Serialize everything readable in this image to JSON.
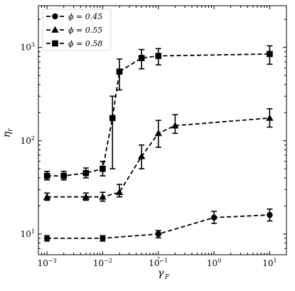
{
  "chart_data": {
    "type": "scatter",
    "title": "",
    "xlabel": "γ̂̇_F",
    "ylabel": "η_r",
    "x_scale": "log",
    "y_scale": "log",
    "xlim": [
      0.0007,
      20
    ],
    "ylim": [
      6,
      2800
    ],
    "x_ticks": [
      {
        "value": 0.001,
        "base": "10",
        "exp": "−3"
      },
      {
        "value": 0.01,
        "base": "10",
        "exp": "−2"
      },
      {
        "value": 0.1,
        "base": "10",
        "exp": "−1"
      },
      {
        "value": 1,
        "base": "10",
        "exp": "0"
      },
      {
        "value": 10,
        "base": "10",
        "exp": "1"
      }
    ],
    "y_ticks": [
      {
        "value": 10,
        "base": "10",
        "exp": "1"
      },
      {
        "value": 100,
        "base": "10",
        "exp": "2"
      },
      {
        "value": 1000,
        "base": "10",
        "exp": "3"
      }
    ],
    "grid": false,
    "legend_position": "top-left",
    "series": [
      {
        "name": "ϕ = 0.45",
        "marker": "circle",
        "x": [
          0.001,
          0.01,
          0.1,
          1,
          10
        ],
        "y": [
          9,
          9,
          10,
          15,
          16
        ],
        "err_low": [
          0.6,
          0.6,
          0.9,
          2,
          2.2
        ],
        "err_high": [
          0.6,
          0.6,
          0.9,
          2.5,
          2.5
        ]
      },
      {
        "name": "ϕ = 0.55",
        "marker": "triangle",
        "x": [
          0.001,
          0.005,
          0.01,
          0.02,
          0.05,
          0.1,
          0.2,
          10
        ],
        "y": [
          25,
          25,
          25,
          28,
          68,
          120,
          145,
          175
        ],
        "err_low": [
          2,
          2,
          2.5,
          3,
          18,
          35,
          25,
          35
        ],
        "err_high": [
          2.5,
          2.5,
          3,
          6,
          22,
          45,
          45,
          45
        ]
      },
      {
        "name": "ϕ = 0.58",
        "marker": "square",
        "x": [
          0.001,
          0.002,
          0.005,
          0.01,
          0.015,
          0.02,
          0.05,
          0.1,
          10
        ],
        "y": [
          42,
          42,
          45,
          50,
          175,
          550,
          770,
          810,
          850
        ],
        "err_low": [
          4,
          4,
          5,
          8,
          125,
          200,
          180,
          160,
          190
        ],
        "err_high": [
          5,
          5,
          6,
          10,
          125,
          200,
          180,
          160,
          190
        ]
      }
    ]
  }
}
